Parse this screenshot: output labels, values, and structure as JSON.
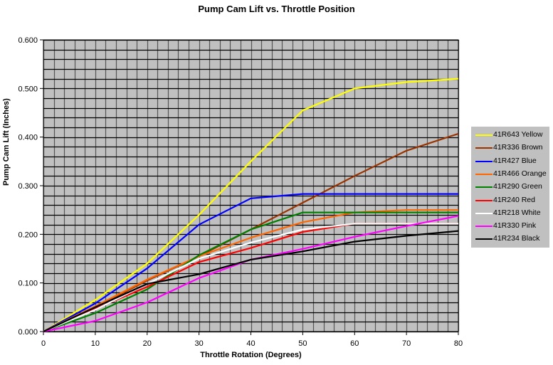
{
  "chart_data": {
    "type": "line",
    "title": "Pump Cam Lift vs. Throttle Position",
    "xlabel": "Throttle Rotation (Degrees)",
    "ylabel": "Pump Cam Lift (Inches)",
    "xlim": [
      0,
      80
    ],
    "ylim": [
      0,
      0.6
    ],
    "x_ticks": [
      "0",
      "10",
      "20",
      "30",
      "40",
      "50",
      "60",
      "70",
      "80"
    ],
    "y_ticks": [
      "0.000",
      "0.100",
      "0.200",
      "0.300",
      "0.400",
      "0.500",
      "0.600"
    ],
    "grid": true,
    "grid_minor_x_step": 2,
    "grid_minor_y_step": 0.02,
    "plot_background": "#c0c0c0",
    "legend_position": "right",
    "x": [
      0,
      10,
      20,
      30,
      40,
      50,
      60,
      70,
      80
    ],
    "series": [
      {
        "name": "41R643 Yellow",
        "color": "#ffff00",
        "values": [
          0,
          0.065,
          0.14,
          0.24,
          0.35,
          0.455,
          0.5,
          0.513,
          0.52
        ]
      },
      {
        "name": "41R336 Brown",
        "color": "#993300",
        "values": [
          0,
          0.05,
          0.105,
          0.155,
          0.21,
          0.265,
          0.32,
          0.372,
          0.407
        ]
      },
      {
        "name": "41R427 Blue",
        "color": "#0000ff",
        "values": [
          0,
          0.058,
          0.13,
          0.22,
          0.274,
          0.283,
          0.283,
          0.283,
          0.283
        ]
      },
      {
        "name": "41R466 Orange",
        "color": "#ff6600",
        "values": [
          0,
          0.052,
          0.107,
          0.155,
          0.193,
          0.225,
          0.245,
          0.25,
          0.25
        ]
      },
      {
        "name": "41R290 Green",
        "color": "#008000",
        "values": [
          0,
          0.038,
          0.087,
          0.157,
          0.21,
          0.245,
          0.245,
          0.245,
          0.245
        ]
      },
      {
        "name": "41R240 Red",
        "color": "#ff0000",
        "values": [
          0,
          0.047,
          0.092,
          0.143,
          0.172,
          0.205,
          0.222,
          0.222,
          0.222
        ]
      },
      {
        "name": "41R218 White",
        "color": "#ffffff",
        "values": [
          0,
          0.045,
          0.098,
          0.15,
          0.183,
          0.21,
          0.222,
          0.222,
          0.222
        ]
      },
      {
        "name": "41R330 Pink",
        "color": "#ff00ff",
        "values": [
          0,
          0.022,
          0.06,
          0.11,
          0.148,
          0.17,
          0.195,
          0.217,
          0.238
        ]
      },
      {
        "name": "41R234 Black",
        "color": "#000000",
        "values": [
          0,
          0.05,
          0.098,
          0.118,
          0.148,
          0.165,
          0.185,
          0.197,
          0.207
        ]
      }
    ]
  }
}
